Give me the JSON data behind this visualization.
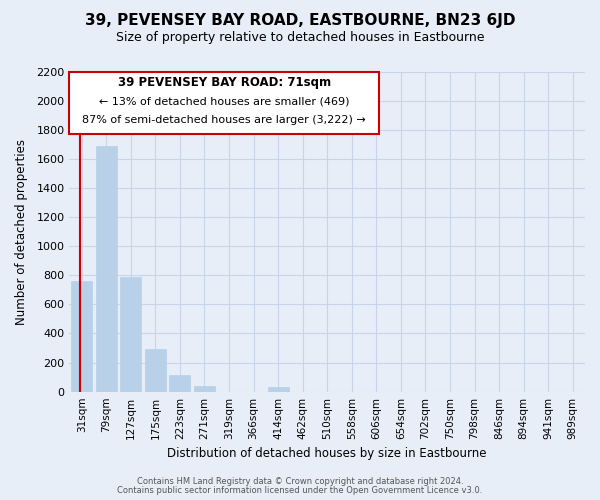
{
  "title": "39, PEVENSEY BAY ROAD, EASTBOURNE, BN23 6JD",
  "subtitle": "Size of property relative to detached houses in Eastbourne",
  "xlabel": "Distribution of detached houses by size in Eastbourne",
  "ylabel": "Number of detached properties",
  "bar_labels": [
    "31sqm",
    "79sqm",
    "127sqm",
    "175sqm",
    "223sqm",
    "271sqm",
    "319sqm",
    "366sqm",
    "414sqm",
    "462sqm",
    "510sqm",
    "558sqm",
    "606sqm",
    "654sqm",
    "702sqm",
    "750sqm",
    "798sqm",
    "846sqm",
    "894sqm",
    "941sqm",
    "989sqm"
  ],
  "bar_values": [
    760,
    1690,
    790,
    295,
    115,
    40,
    0,
    0,
    30,
    0,
    0,
    0,
    0,
    0,
    0,
    0,
    0,
    0,
    0,
    0,
    0
  ],
  "bar_color": "#b8d0e8",
  "ylim": [
    0,
    2200
  ],
  "yticks": [
    0,
    200,
    400,
    600,
    800,
    1000,
    1200,
    1400,
    1600,
    1800,
    2000,
    2200
  ],
  "annotation_title": "39 PEVENSEY BAY ROAD: 71sqm",
  "annotation_line1": "← 13% of detached houses are smaller (469)",
  "annotation_line2": "87% of semi-detached houses are larger (3,222) →",
  "annotation_box_color": "#ffffff",
  "annotation_box_edge": "#cc0000",
  "footer_line1": "Contains HM Land Registry data © Crown copyright and database right 2024.",
  "footer_line2": "Contains public sector information licensed under the Open Government Licence v3.0.",
  "grid_color": "#c8d4e8",
  "background_color": "#e8eef8",
  "red_line_x": -0.08,
  "title_fontsize": 11,
  "subtitle_fontsize": 9
}
